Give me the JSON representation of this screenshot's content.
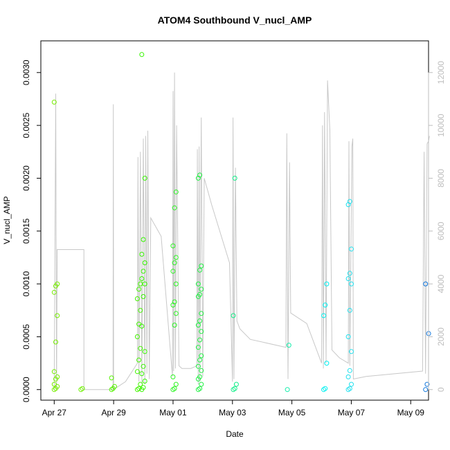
{
  "chart_data": {
    "type": "scatter",
    "title": "ATOM4 Southbound V_nucl_AMP",
    "xlabel": "Date",
    "ylabel": "V_nucl_AMP",
    "x_unit": "days since Apr 27",
    "xlim": [
      -0.45,
      12.6
    ],
    "ylim": [
      -0.0001,
      0.0033
    ],
    "y2lim": [
      -400,
      13200
    ],
    "x_ticks": [
      {
        "x": 0,
        "label": "Apr 27"
      },
      {
        "x": 2,
        "label": "Apr 29"
      },
      {
        "x": 4,
        "label": "May 01"
      },
      {
        "x": 6,
        "label": "May 03"
      },
      {
        "x": 8,
        "label": "May 05"
      },
      {
        "x": 10,
        "label": "May 07"
      },
      {
        "x": 12,
        "label": "May 09"
      }
    ],
    "y_ticks": [
      {
        "v": 0.0,
        "label": "0.0000"
      },
      {
        "v": 0.0005,
        "label": "0.0005"
      },
      {
        "v": 0.001,
        "label": "0.0010"
      },
      {
        "v": 0.0015,
        "label": "0.0015"
      },
      {
        "v": 0.002,
        "label": "0.0020"
      },
      {
        "v": 0.0025,
        "label": "0.0025"
      },
      {
        "v": 0.003,
        "label": "0.0030"
      }
    ],
    "y2_ticks": [
      {
        "v": 0,
        "label": "0"
      },
      {
        "v": 2000,
        "label": "2000"
      },
      {
        "v": 4000,
        "label": "4000"
      },
      {
        "v": 6000,
        "label": "6000"
      },
      {
        "v": 8000,
        "label": "8000"
      },
      {
        "v": 10000,
        "label": "10000"
      },
      {
        "v": 12000,
        "label": "12000"
      }
    ],
    "grid": false,
    "legend": "none",
    "colors": {
      "secondary_line": "#c8c8c8",
      "right_axis": "#bdbdbd"
    },
    "series": [
      {
        "color": "#77ee00",
        "x": 0.05,
        "y": [
          0,
          1e-05,
          3e-05,
          5e-05,
          0.0001,
          0.00012,
          0.00017,
          0.00045,
          0.0007,
          0.00092,
          0.00098,
          0.001,
          0.00272
        ]
      },
      {
        "color": "#6ef000",
        "x": 0.95,
        "y": [
          0,
          1e-05
        ]
      },
      {
        "color": "#55f200",
        "x": 1.98,
        "y": [
          0,
          1e-05,
          3e-05,
          0.00011
        ]
      },
      {
        "color": "#44f400",
        "x": 2.85,
        "y": [
          0,
          1e-05,
          5e-05,
          0.00017,
          0.00028,
          0.00039,
          0.0005,
          0.00062,
          0.00075,
          0.00086,
          0.00095,
          0.001
        ]
      },
      {
        "color": "#36f500",
        "x": 3.0,
        "y": [
          0,
          2e-05,
          8e-05,
          0.00015,
          0.00022,
          0.00036,
          0.0006,
          0.00088,
          0.001,
          0.00105,
          0.00112,
          0.0012,
          0.00128,
          0.00142,
          0.002,
          0.00317
        ]
      },
      {
        "color": "#2cf422",
        "x": 4.05,
        "y": [
          0,
          1e-05,
          5e-05,
          0.00012,
          0.00061,
          0.00072,
          0.0008,
          0.00083,
          0.001,
          0.00112,
          0.0012,
          0.00125,
          0.00136,
          0.00172,
          0.00187
        ]
      },
      {
        "color": "#22f044",
        "x": 4.9,
        "y": [
          0,
          1e-05,
          5e-05,
          0.0001,
          0.00012,
          0.00018,
          0.00022,
          0.00028,
          0.00032,
          0.0004,
          0.00047,
          0.00055,
          0.00061,
          0.00065,
          0.00072,
          0.00088,
          0.0009,
          0.00095,
          0.001,
          0.00113,
          0.00117,
          0.002,
          0.00203
        ]
      },
      {
        "color": "#11ee88",
        "x": 6.08,
        "y": [
          0,
          1e-05,
          5e-05,
          0.0007,
          0.002
        ]
      },
      {
        "color": "#11eeaa",
        "x": 7.9,
        "y": [
          0,
          0.00042
        ]
      },
      {
        "color": "#00f0f0",
        "x": 9.12,
        "y": [
          0,
          1e-05,
          0.00025,
          0.0007,
          0.0008,
          0.001
        ]
      },
      {
        "color": "#22e0ee",
        "x": 9.95,
        "y": [
          0,
          1e-05,
          5e-05,
          0.00012,
          0.00018,
          0.00036,
          0.0005,
          0.00075,
          0.001,
          0.00105,
          0.0011,
          0.00133,
          0.00175,
          0.00178
        ]
      },
      {
        "color": "#1177dd",
        "x": 12.55,
        "y": [
          0,
          5e-05,
          0.00053,
          0.001
        ]
      }
    ],
    "secondary_line": [
      [
        0.0,
        0
      ],
      [
        0.05,
        11200
      ],
      [
        0.08,
        0
      ],
      [
        0.1,
        5300
      ],
      [
        1.0,
        5300
      ],
      [
        1.0,
        0
      ],
      [
        1.98,
        0
      ],
      [
        1.99,
        10800
      ],
      [
        2.0,
        0
      ],
      [
        2.4,
        300
      ],
      [
        2.8,
        1000
      ],
      [
        2.82,
        8800
      ],
      [
        2.85,
        300
      ],
      [
        2.9,
        9000
      ],
      [
        2.95,
        200
      ],
      [
        3.0,
        9500
      ],
      [
        3.05,
        200
      ],
      [
        3.08,
        9600
      ],
      [
        3.12,
        600
      ],
      [
        3.15,
        9800
      ],
      [
        3.2,
        400
      ],
      [
        3.25,
        6500
      ],
      [
        3.6,
        5800
      ],
      [
        3.98,
        500
      ],
      [
        4.0,
        11300
      ],
      [
        4.02,
        700
      ],
      [
        4.05,
        12000
      ],
      [
        4.08,
        800
      ],
      [
        4.12,
        10000
      ],
      [
        4.2,
        900
      ],
      [
        4.3,
        800
      ],
      [
        4.6,
        800
      ],
      [
        4.8,
        900
      ],
      [
        4.82,
        9100
      ],
      [
        4.85,
        200
      ],
      [
        4.88,
        9200
      ],
      [
        4.9,
        300
      ],
      [
        4.95,
        10300
      ],
      [
        5.0,
        500
      ],
      [
        5.05,
        8000
      ],
      [
        5.3,
        7000
      ],
      [
        5.9,
        4800
      ],
      [
        6.0,
        300
      ],
      [
        6.02,
        10300
      ],
      [
        6.05,
        400
      ],
      [
        6.1,
        8400
      ],
      [
        6.15,
        2600
      ],
      [
        6.25,
        2300
      ],
      [
        6.6,
        1900
      ],
      [
        7.8,
        1600
      ],
      [
        7.83,
        9700
      ],
      [
        7.87,
        400
      ],
      [
        7.92,
        8600
      ],
      [
        7.96,
        2900
      ],
      [
        8.5,
        2500
      ],
      [
        9.0,
        1000
      ],
      [
        9.03,
        10000
      ],
      [
        9.06,
        800
      ],
      [
        9.1,
        10500
      ],
      [
        9.15,
        1000
      ],
      [
        9.2,
        11700
      ],
      [
        9.28,
        9800
      ],
      [
        9.35,
        1500
      ],
      [
        9.6,
        1200
      ],
      [
        9.9,
        1000
      ],
      [
        9.92,
        9400
      ],
      [
        9.95,
        900
      ],
      [
        10.02,
        9200
      ],
      [
        10.05,
        9500
      ],
      [
        10.07,
        400
      ],
      [
        10.5,
        500
      ],
      [
        12.4,
        700
      ],
      [
        12.45,
        9000
      ],
      [
        12.5,
        600
      ],
      [
        12.55,
        9300
      ],
      [
        12.6,
        9400
      ],
      [
        12.63,
        9600
      ]
    ]
  }
}
